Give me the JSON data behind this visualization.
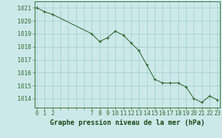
{
  "x": [
    0,
    1,
    2,
    7,
    8,
    9,
    10,
    11,
    12,
    13,
    14,
    15,
    16,
    17,
    18,
    19,
    20,
    21,
    22,
    23
  ],
  "y": [
    1021.0,
    1020.7,
    1020.5,
    1019.0,
    1018.4,
    1018.7,
    1019.2,
    1018.9,
    1018.3,
    1017.7,
    1016.6,
    1015.5,
    1015.2,
    1015.2,
    1015.2,
    1014.9,
    1014.0,
    1013.7,
    1014.2,
    1013.9
  ],
  "line_color": "#2d6a2d",
  "marker": "+",
  "bg_color": "#cce8e8",
  "grid_color": "#99cccc",
  "xlabel_ticks_all": [
    0,
    1,
    2,
    3,
    4,
    5,
    6,
    7,
    8,
    9,
    10,
    11,
    12,
    13,
    14,
    15,
    16,
    17,
    18,
    19,
    20,
    21,
    22,
    23
  ],
  "xlabel_ticks_labeled": [
    0,
    1,
    2,
    7,
    8,
    9,
    10,
    11,
    12,
    13,
    14,
    15,
    16,
    17,
    18,
    19,
    20,
    21,
    22,
    23
  ],
  "ytick_labels": [
    1014,
    1015,
    1016,
    1017,
    1018,
    1019,
    1020,
    1021
  ],
  "ymin": 1013.3,
  "ymax": 1021.5,
  "xmin": -0.3,
  "xmax": 23.3,
  "title": "Graphe pression niveau de la mer (hPa)",
  "title_fontsize": 7,
  "tick_fontsize": 6,
  "title_color": "#1a4a1a",
  "tick_color": "#2d6a2d",
  "spine_color": "#2d6a2d"
}
